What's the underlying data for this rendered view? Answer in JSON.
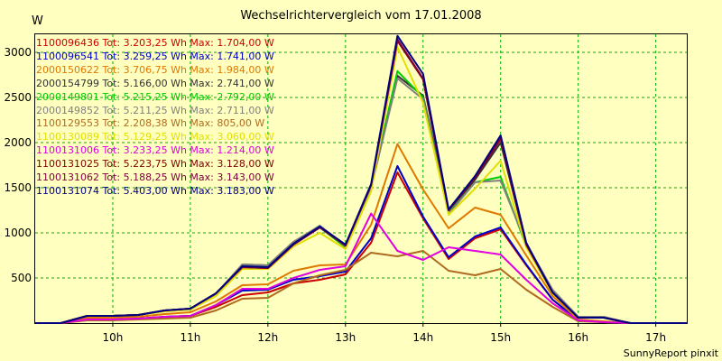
{
  "header": {
    "title": "Wechselrichtervergleich vom 17.01.2008",
    "unit": "W"
  },
  "footer": {
    "text": "SunnyReport pinxit"
  },
  "chart_data": {
    "type": "line",
    "title": "Wechselrichtervergleich vom 17.01.2008",
    "ylabel": "W",
    "ylim": [
      0,
      3200
    ],
    "yticks": [
      500,
      1000,
      1500,
      2000,
      2500,
      3000
    ],
    "xlim": [
      9.0,
      17.4
    ],
    "xticks": [
      10,
      11,
      12,
      13,
      14,
      15,
      16,
      17
    ],
    "xtick_labels": [
      "10h",
      "11h",
      "12h",
      "13h",
      "14h",
      "15h",
      "16h",
      "17h"
    ],
    "grid": true,
    "legend_position": "top-left",
    "x": [
      9.0,
      9.33,
      9.67,
      10.0,
      10.33,
      10.67,
      11.0,
      11.33,
      11.67,
      12.0,
      12.33,
      12.67,
      13.0,
      13.33,
      13.67,
      14.0,
      14.33,
      14.67,
      15.0,
      15.33,
      15.67,
      16.0,
      16.33,
      16.67,
      17.0,
      17.4
    ],
    "series": [
      {
        "name": "1100096436",
        "total": "3.203,25",
        "max": "1.704,00",
        "color": "#cc0000",
        "values": [
          0,
          0,
          40,
          40,
          50,
          70,
          80,
          180,
          310,
          340,
          440,
          480,
          540,
          890,
          1670,
          1160,
          710,
          940,
          1040,
          640,
          260,
          30,
          10,
          0,
          0,
          0
        ]
      },
      {
        "name": "1100096541",
        "total": "3.259,25",
        "max": "1.741,00",
        "color": "#0000cc",
        "values": [
          0,
          0,
          40,
          40,
          50,
          70,
          80,
          200,
          360,
          370,
          480,
          520,
          570,
          940,
          1740,
          1180,
          730,
          960,
          1060,
          650,
          260,
          30,
          10,
          0,
          0,
          0
        ]
      },
      {
        "name": "2000150622",
        "total": "3.706,75",
        "max": "1.984,00",
        "color": "#e07800",
        "values": [
          0,
          0,
          60,
          60,
          70,
          100,
          120,
          240,
          420,
          430,
          580,
          640,
          650,
          1090,
          1984,
          1480,
          1050,
          1280,
          1200,
          750,
          300,
          40,
          20,
          0,
          0,
          0
        ]
      },
      {
        "name": "2000154799",
        "total": "5.166,00",
        "max": "2.741,00",
        "color": "#333333",
        "values": [
          0,
          0,
          80,
          80,
          90,
          140,
          160,
          320,
          650,
          640,
          900,
          1070,
          860,
          1500,
          2741,
          2520,
          1240,
          1590,
          2000,
          870,
          340,
          60,
          60,
          0,
          0,
          0
        ]
      },
      {
        "name": "2000149801",
        "total": "5.215,25",
        "max": "2.792,00",
        "color": "#00cc00",
        "values": [
          0,
          0,
          80,
          80,
          90,
          140,
          160,
          320,
          640,
          630,
          890,
          1060,
          840,
          1500,
          2792,
          2500,
          1220,
          1560,
          1620,
          850,
          360,
          60,
          60,
          0,
          0,
          0
        ]
      },
      {
        "name": "2000149852",
        "total": "5.211,25",
        "max": "2.711,00",
        "color": "#808080",
        "values": [
          0,
          0,
          80,
          80,
          90,
          140,
          160,
          320,
          650,
          640,
          900,
          1080,
          850,
          1500,
          2711,
          2480,
          1210,
          1560,
          1580,
          880,
          370,
          70,
          70,
          0,
          0,
          0
        ]
      },
      {
        "name": "1100129553",
        "total": "2.208,38",
        "max": "805,00",
        "color": "#b06a20",
        "values": [
          0,
          0,
          30,
          30,
          40,
          50,
          60,
          140,
          270,
          280,
          440,
          530,
          590,
          780,
          740,
          800,
          580,
          530,
          600,
          370,
          180,
          20,
          10,
          0,
          0,
          0
        ]
      },
      {
        "name": "1100130089",
        "total": "5.129,25",
        "max": "3.060,00",
        "color": "#e0e000",
        "values": [
          0,
          0,
          80,
          80,
          90,
          130,
          150,
          300,
          600,
          600,
          850,
          1000,
          820,
          1460,
          3060,
          2440,
          1200,
          1490,
          1800,
          840,
          330,
          60,
          60,
          0,
          0,
          0
        ]
      },
      {
        "name": "1100131006",
        "total": "3.233,25",
        "max": "1.214,00",
        "color": "#e000e0",
        "values": [
          0,
          0,
          40,
          40,
          50,
          70,
          80,
          200,
          380,
          380,
          500,
          590,
          630,
          1214,
          800,
          700,
          840,
          800,
          760,
          480,
          220,
          30,
          10,
          0,
          0,
          0
        ]
      },
      {
        "name": "1100131025",
        "total": "5.223,75",
        "max": "3.128,00",
        "color": "#800000",
        "values": [
          0,
          0,
          80,
          80,
          90,
          140,
          160,
          330,
          620,
          610,
          870,
          1060,
          860,
          1530,
          3128,
          2700,
          1250,
          1610,
          2040,
          870,
          340,
          60,
          60,
          0,
          0,
          0
        ]
      },
      {
        "name": "1100131062",
        "total": "5.188,25",
        "max": "3.143,00",
        "color": "#800040",
        "values": [
          0,
          0,
          80,
          80,
          90,
          140,
          160,
          330,
          620,
          610,
          870,
          1060,
          860,
          1530,
          3143,
          2710,
          1250,
          1620,
          2050,
          880,
          340,
          60,
          60,
          0,
          0,
          0
        ]
      },
      {
        "name": "1100131074",
        "total": "5.403,00",
        "max": "3.183,00",
        "color": "#000080",
        "values": [
          0,
          0,
          80,
          80,
          90,
          140,
          160,
          330,
          630,
          620,
          880,
          1070,
          870,
          1540,
          3183,
          2760,
          1260,
          1630,
          2080,
          890,
          340,
          60,
          60,
          0,
          0,
          0
        ]
      }
    ]
  }
}
